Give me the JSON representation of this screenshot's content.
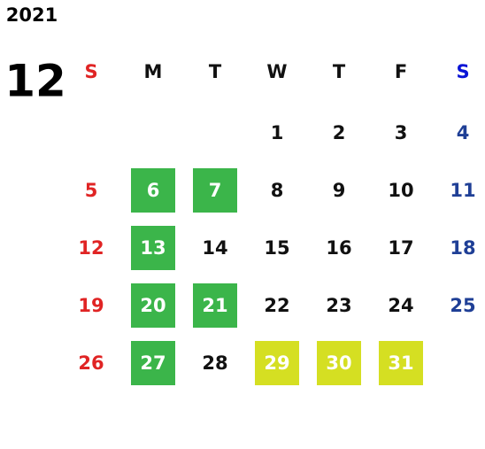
{
  "calendar": {
    "year": "2021",
    "month": "12",
    "weekdays": [
      "S",
      "M",
      "T",
      "W",
      "T",
      "F",
      "S"
    ],
    "weeks": [
      [
        null,
        null,
        null,
        1,
        2,
        3,
        4
      ],
      [
        5,
        6,
        7,
        8,
        9,
        10,
        11
      ],
      [
        12,
        13,
        14,
        15,
        16,
        17,
        18
      ],
      [
        19,
        20,
        21,
        22,
        23,
        24,
        25
      ],
      [
        26,
        27,
        28,
        29,
        30,
        31,
        null
      ]
    ],
    "highlights": [
      [
        null,
        null,
        null,
        null,
        null,
        null,
        null
      ],
      [
        null,
        "green",
        "green",
        null,
        null,
        null,
        null
      ],
      [
        null,
        "green",
        null,
        null,
        null,
        null,
        null
      ],
      [
        null,
        "green",
        "green",
        null,
        null,
        null,
        null
      ],
      [
        null,
        "green",
        null,
        "yellow",
        "yellow",
        "yellow",
        null
      ]
    ],
    "colors": {
      "sunday": "#e02424",
      "saturday": "#1f3f96",
      "saturday_header": "#0a14d6",
      "weekday": "#111111",
      "green": "#3bb54a",
      "yellow": "#d5df22",
      "highlight_text": "#ffffff"
    }
  }
}
